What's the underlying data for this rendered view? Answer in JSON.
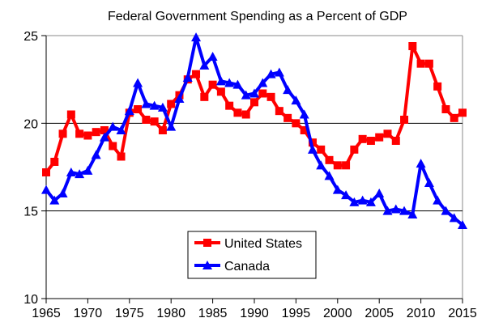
{
  "chart_data": {
    "type": "line",
    "title": "Federal Government Spending as a Percent of GDP",
    "xlabel": "",
    "ylabel": "",
    "xlim": [
      1965,
      2015
    ],
    "ylim": [
      10,
      25
    ],
    "x_ticks": [
      "1965",
      "1970",
      "1975",
      "1980",
      "1985",
      "1990",
      "1995",
      "2000",
      "2005",
      "2010",
      "2015"
    ],
    "y_ticks": [
      "10",
      "15",
      "20",
      "25"
    ],
    "grid": "horizontal",
    "legend_position": "bottom-center",
    "x": [
      1965,
      1966,
      1967,
      1968,
      1969,
      1970,
      1971,
      1972,
      1973,
      1974,
      1975,
      1976,
      1977,
      1978,
      1979,
      1980,
      1981,
      1982,
      1983,
      1984,
      1985,
      1986,
      1987,
      1988,
      1989,
      1990,
      1991,
      1992,
      1993,
      1994,
      1995,
      1996,
      1997,
      1998,
      1999,
      2000,
      2001,
      2002,
      2003,
      2004,
      2005,
      2006,
      2007,
      2008,
      2009,
      2010,
      2011,
      2012,
      2013,
      2014,
      2015
    ],
    "series": [
      {
        "name": "United States",
        "color": "#ff0000",
        "marker": "square",
        "values": [
          17.2,
          17.8,
          19.4,
          20.5,
          19.4,
          19.3,
          19.5,
          19.6,
          18.7,
          18.1,
          20.6,
          20.8,
          20.2,
          20.1,
          19.6,
          21.1,
          21.6,
          22.5,
          22.8,
          21.5,
          22.2,
          21.8,
          21.0,
          20.6,
          20.5,
          21.2,
          21.7,
          21.5,
          20.7,
          20.3,
          20.0,
          19.6,
          18.9,
          18.5,
          17.9,
          17.6,
          17.6,
          18.5,
          19.1,
          19.0,
          19.2,
          19.4,
          19.0,
          20.2,
          24.4,
          23.4,
          23.4,
          22.1,
          20.8,
          20.3,
          20.6
        ]
      },
      {
        "name": "Canada",
        "color": "#0000ff",
        "marker": "triangle",
        "values": [
          16.2,
          15.6,
          16.0,
          17.2,
          17.1,
          17.3,
          18.2,
          19.2,
          19.8,
          19.6,
          20.7,
          22.3,
          21.1,
          21.0,
          20.9,
          19.8,
          21.4,
          22.6,
          24.9,
          23.3,
          23.8,
          22.4,
          22.3,
          22.2,
          21.6,
          21.7,
          22.3,
          22.8,
          22.9,
          21.9,
          21.3,
          20.5,
          18.5,
          17.6,
          17.0,
          16.2,
          15.9,
          15.5,
          15.6,
          15.5,
          16.0,
          15.0,
          15.1,
          15.0,
          14.8,
          17.7,
          16.6,
          15.6,
          15.0,
          14.6,
          14.2
        ]
      }
    ]
  }
}
